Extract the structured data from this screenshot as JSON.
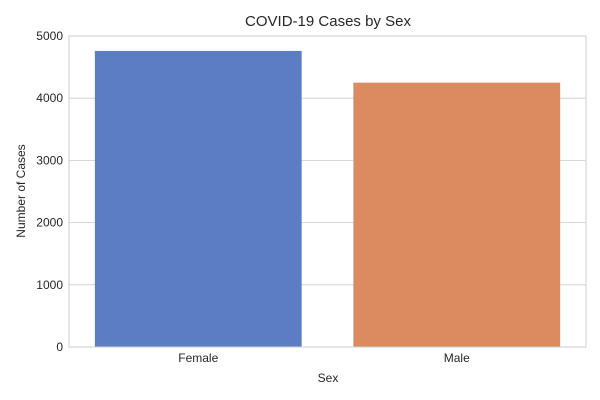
{
  "chart_data": {
    "type": "bar",
    "title": "COVID-19 Cases by Sex",
    "xlabel": "Sex",
    "ylabel": "Number of Cases",
    "categories": [
      "Female",
      "Male"
    ],
    "values": [
      4760,
      4250
    ],
    "colors": [
      "#5b7ec2",
      "#db8b5f"
    ],
    "ylim": [
      0,
      5000
    ],
    "yticks": [
      0,
      1000,
      2000,
      3000,
      4000,
      5000
    ],
    "grid": true,
    "legend": "none"
  }
}
